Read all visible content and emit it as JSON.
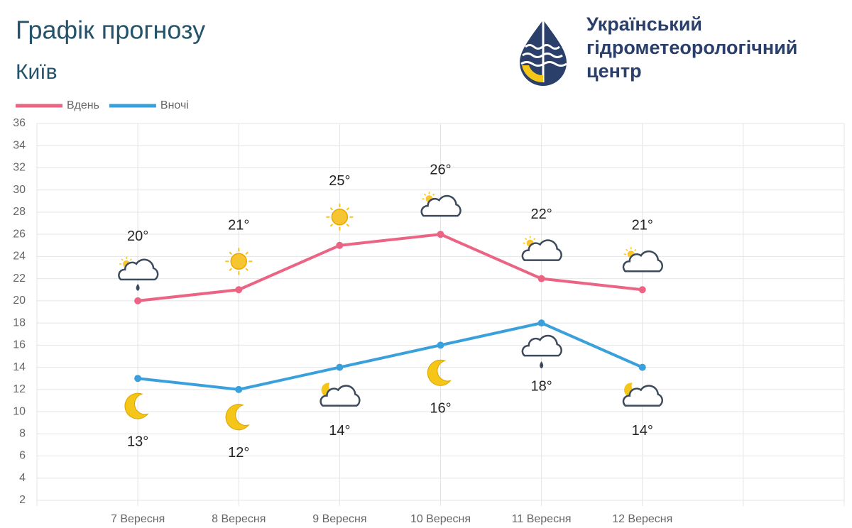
{
  "chart_data": {
    "type": "line",
    "title": "Графік прогнозу",
    "subtitle": "Київ",
    "organization": [
      "Український",
      "гідрометеорологічний",
      "центр"
    ],
    "categories": [
      null,
      "7 Вересня",
      "8 Вересня",
      "9 Вересня",
      "10 Вересня",
      "11 Вересня",
      "12 Вересня",
      null,
      null
    ],
    "series": [
      {
        "name": "Вдень",
        "color": "#eb6483",
        "values": [
          null,
          20,
          21,
          25,
          26,
          22,
          21,
          null,
          null
        ],
        "value_labels": [
          null,
          "20°",
          "21°",
          "25°",
          "26°",
          "22°",
          "21°",
          null,
          null
        ]
      },
      {
        "name": "Вночі",
        "color": "#3aa0dc",
        "values": [
          null,
          13,
          12,
          14,
          16,
          18,
          14,
          null,
          null
        ],
        "value_labels": [
          null,
          "13°",
          "12°",
          "14°",
          "16°",
          "18°",
          "14°",
          null,
          null
        ]
      }
    ],
    "ylim": [
      2,
      36
    ],
    "yticks": [
      2,
      4,
      6,
      8,
      10,
      12,
      14,
      16,
      18,
      20,
      22,
      24,
      26,
      28,
      30,
      32,
      34,
      36
    ],
    "grid": true
  }
}
